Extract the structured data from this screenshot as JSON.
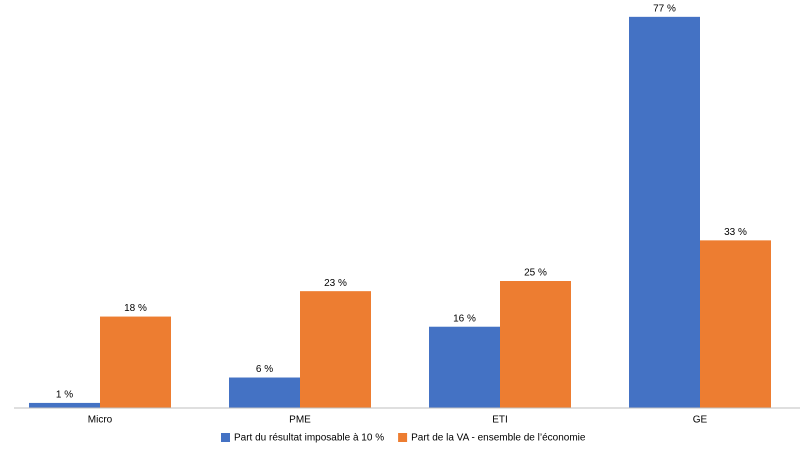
{
  "chart_data": {
    "type": "bar",
    "categories": [
      "Micro",
      "PME",
      "ETI",
      "GE"
    ],
    "series": [
      {
        "name": "Part du résultat imposable à 10 %",
        "color": "#4472c4",
        "values": [
          1,
          6,
          16,
          77
        ],
        "value_labels": [
          "1 %",
          "6 %",
          "16 %",
          "77 %"
        ]
      },
      {
        "name": "Part de la VA - ensemble de l’économie",
        "color": "#ed7d31",
        "values": [
          18,
          23,
          25,
          33
        ],
        "value_labels": [
          "18 %",
          "23 %",
          "25 %",
          "33 %"
        ]
      }
    ],
    "ylim": [
      0,
      80
    ],
    "grid": false,
    "legend": "bottom"
  }
}
